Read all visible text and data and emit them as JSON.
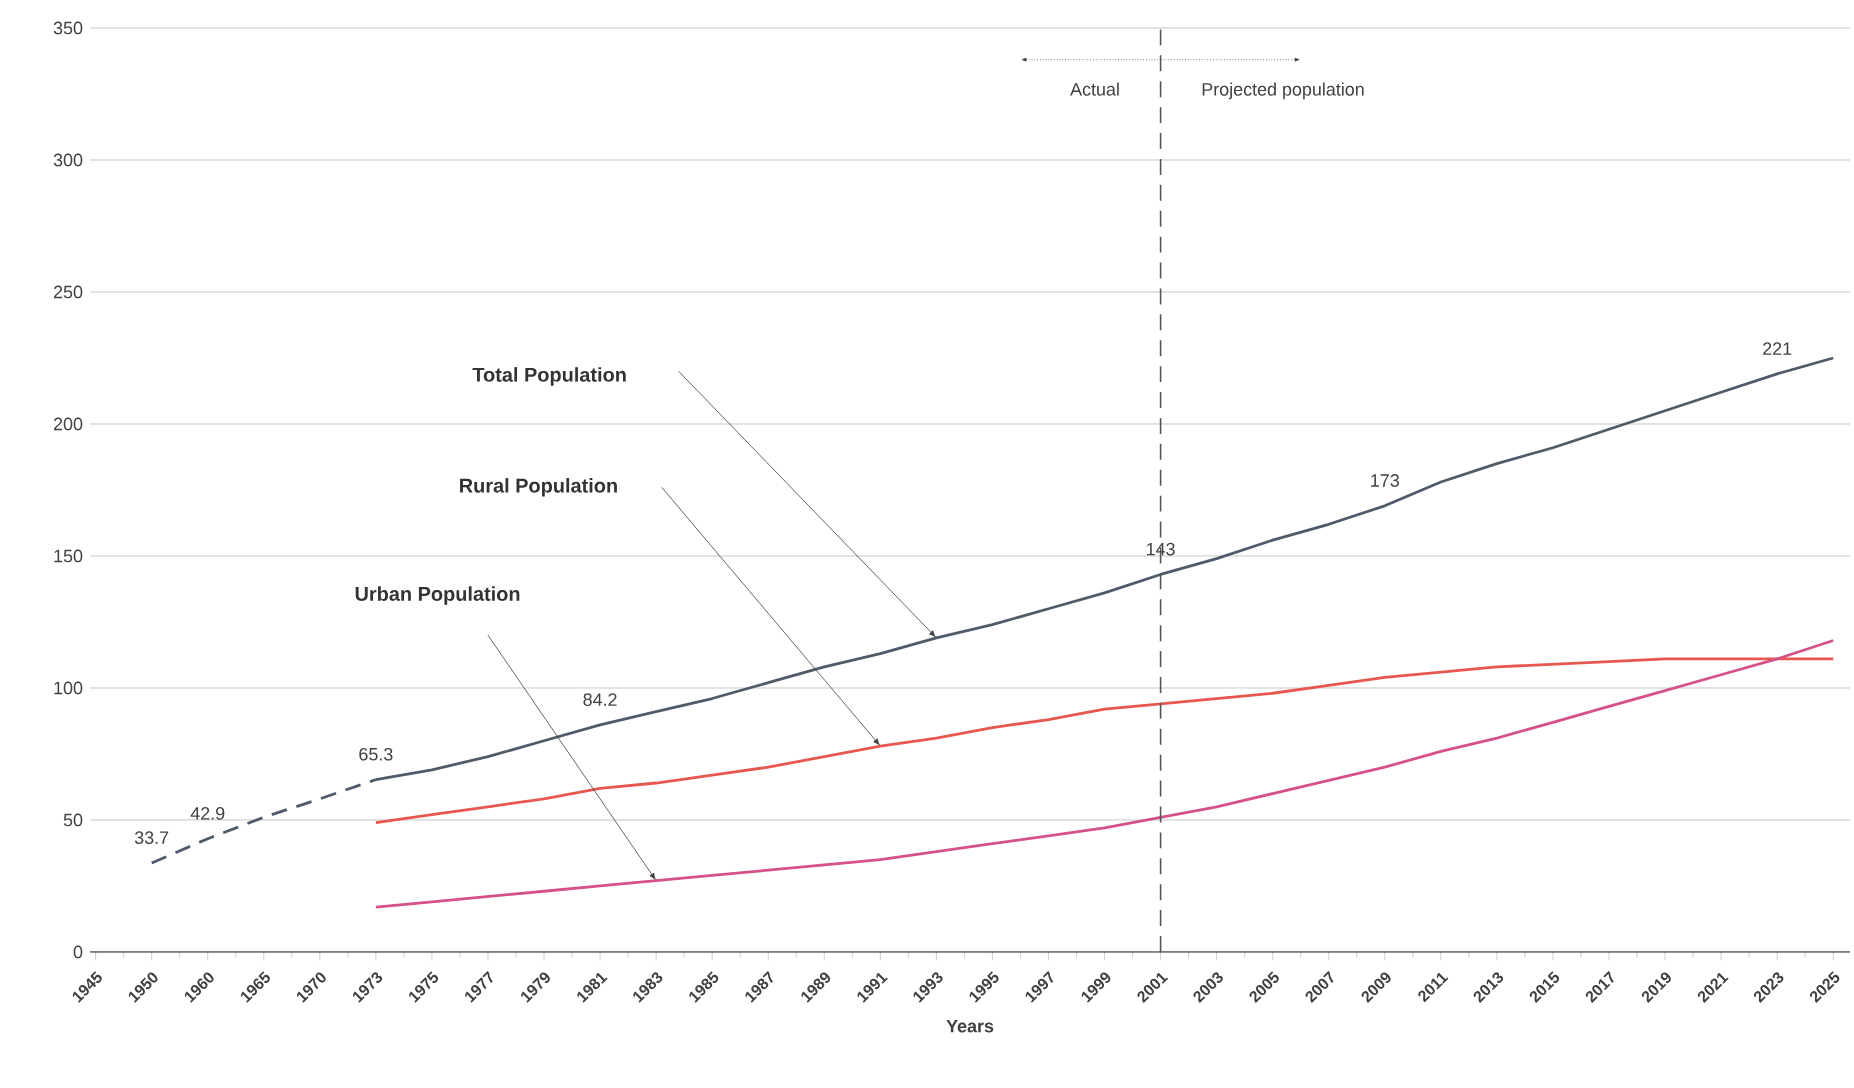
{
  "chart_data": {
    "type": "line",
    "xlabel": "Years",
    "categories": [
      "1945",
      "1950",
      "1960",
      "1965",
      "1970",
      "1973",
      "1975",
      "1977",
      "1979",
      "1981",
      "1983",
      "1985",
      "1987",
      "1989",
      "1991",
      "1993",
      "1995",
      "1997",
      "1999",
      "2001",
      "2003",
      "2005",
      "2007",
      "2009",
      "2011",
      "2013",
      "2015",
      "2017",
      "2019",
      "2021",
      "2023",
      "2025"
    ],
    "series": [
      {
        "color": "#4f5a6b",
        "line_style": "dashed",
        "values": [
          null,
          33.7,
          42.9,
          51,
          58,
          65.3,
          null,
          null,
          null,
          null,
          null,
          null,
          null,
          null,
          null,
          null,
          null,
          null,
          null,
          null,
          null,
          null,
          null,
          null,
          null,
          null,
          null,
          null,
          null,
          null,
          null,
          null
        ]
      },
      {
        "color": "#4f5a6b",
        "values": [
          null,
          null,
          null,
          null,
          null,
          65.3,
          69,
          74,
          80,
          86,
          91,
          96,
          102,
          108,
          113,
          119,
          124,
          130,
          136,
          143,
          149,
          156,
          162,
          169,
          178,
          185,
          191,
          198,
          205,
          212,
          219,
          225
        ]
      },
      {
        "color": "#e8574f",
        "values": [
          null,
          null,
          null,
          null,
          null,
          49,
          52,
          55,
          58,
          62,
          64,
          67,
          70,
          74,
          78,
          81,
          85,
          88,
          92,
          94,
          96,
          98,
          101,
          104,
          106,
          108,
          109,
          110,
          111,
          111,
          111,
          111
        ]
      },
      {
        "color": "#d6508a",
        "values": [
          null,
          null,
          null,
          null,
          null,
          17,
          19,
          21,
          23,
          25,
          27,
          29,
          31,
          33,
          35,
          38,
          41,
          44,
          47,
          51,
          55,
          60,
          65,
          70,
          76,
          81,
          87,
          93,
          99,
          105,
          111,
          118
        ]
      }
    ],
    "ylim": [
      0,
      350
    ],
    "yticks": [
      0,
      50,
      100,
      150,
      200,
      250,
      300,
      350
    ],
    "grid": "y",
    "marker": "none",
    "line_style": "solid",
    "ref_lines": [
      {
        "axis": "x",
        "value": "2001",
        "color": "#555555",
        "line_style": "dashed"
      }
    ],
    "annotations": [
      {
        "text": "33.7",
        "x": "1950",
        "y": 33.7
      },
      {
        "text": "42.9",
        "x": "1960",
        "y": 42.9
      },
      {
        "text": "65.3",
        "x": "1973",
        "y": 65.3
      },
      {
        "text": "84.2",
        "x": "1981",
        "y": 86
      },
      {
        "text": "143",
        "x": "2001",
        "y": 143
      },
      {
        "text": "173",
        "x": "2009",
        "y": 169
      },
      {
        "text": "221",
        "x": "2023",
        "y": 219
      },
      "Total Population",
      "Rural Population",
      "Urban Population",
      "Actual",
      "Projected population"
    ]
  }
}
